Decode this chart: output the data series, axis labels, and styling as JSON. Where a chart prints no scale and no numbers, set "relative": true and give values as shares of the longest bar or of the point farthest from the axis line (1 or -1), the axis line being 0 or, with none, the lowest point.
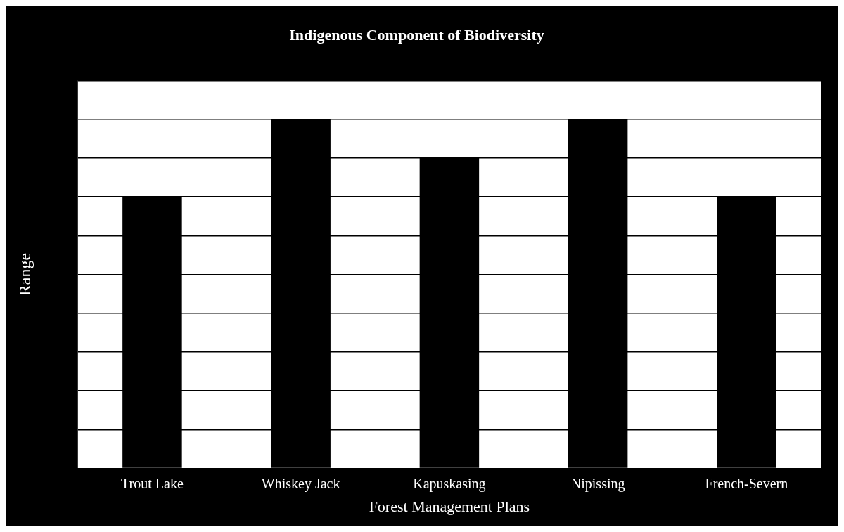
{
  "chart_data": {
    "type": "bar",
    "title": "Indigenous Component of Biodiversity",
    "xlabel": "Forest Management Plans",
    "ylabel": "Range",
    "categories": [
      "Trout Lake",
      "Whiskey Jack",
      "Kapuskasing",
      "Nipissing",
      "French-Severn"
    ],
    "values": [
      0.778,
      1,
      0.889,
      1,
      0.778
    ],
    "color": "#000000",
    "relative": true,
    "grid": "y",
    "legend": false
  }
}
